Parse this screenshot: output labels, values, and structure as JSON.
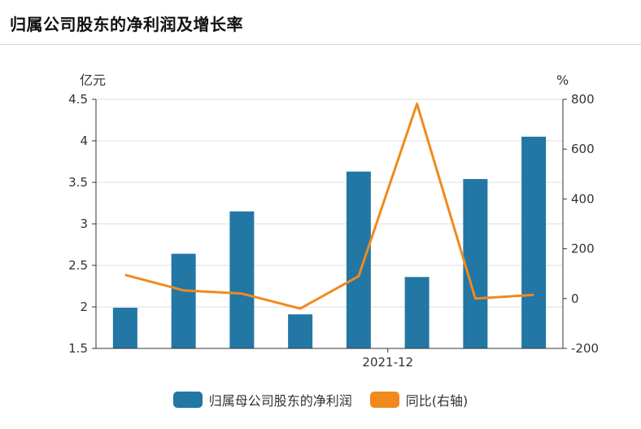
{
  "header": {
    "title": "归属公司股东的净利润及增长率"
  },
  "colors": {
    "bar": "#2277a4",
    "line": "#f08a1e",
    "grid": "#dddddd",
    "axis": "#333333"
  },
  "chart_data": {
    "type": "bar",
    "title": "归属公司股东的净利润及增长率",
    "y_left_unit": "亿元",
    "y_right_unit": "%",
    "y_left_range": [
      1.5,
      4.5
    ],
    "y_right_range": [
      -200,
      800
    ],
    "y_left_ticks": [
      "1.5",
      "2",
      "2.5",
      "3",
      "3.5",
      "4",
      "4.5"
    ],
    "y_right_ticks": [
      "-200",
      "0",
      "200",
      "400",
      "600",
      "800"
    ],
    "x_tick_labels": [
      "2021-12"
    ],
    "grid": true,
    "legend_position": "bottom",
    "series": [
      {
        "name": "归属母公司股东的净利润",
        "type": "bar",
        "axis": "left",
        "values": [
          1.99,
          2.64,
          3.15,
          1.91,
          3.63,
          2.36,
          3.54,
          4.05
        ]
      },
      {
        "name": "同比(右轴)",
        "type": "line",
        "axis": "right",
        "values": [
          95,
          33,
          20,
          -40,
          90,
          782,
          0,
          15
        ]
      }
    ]
  }
}
